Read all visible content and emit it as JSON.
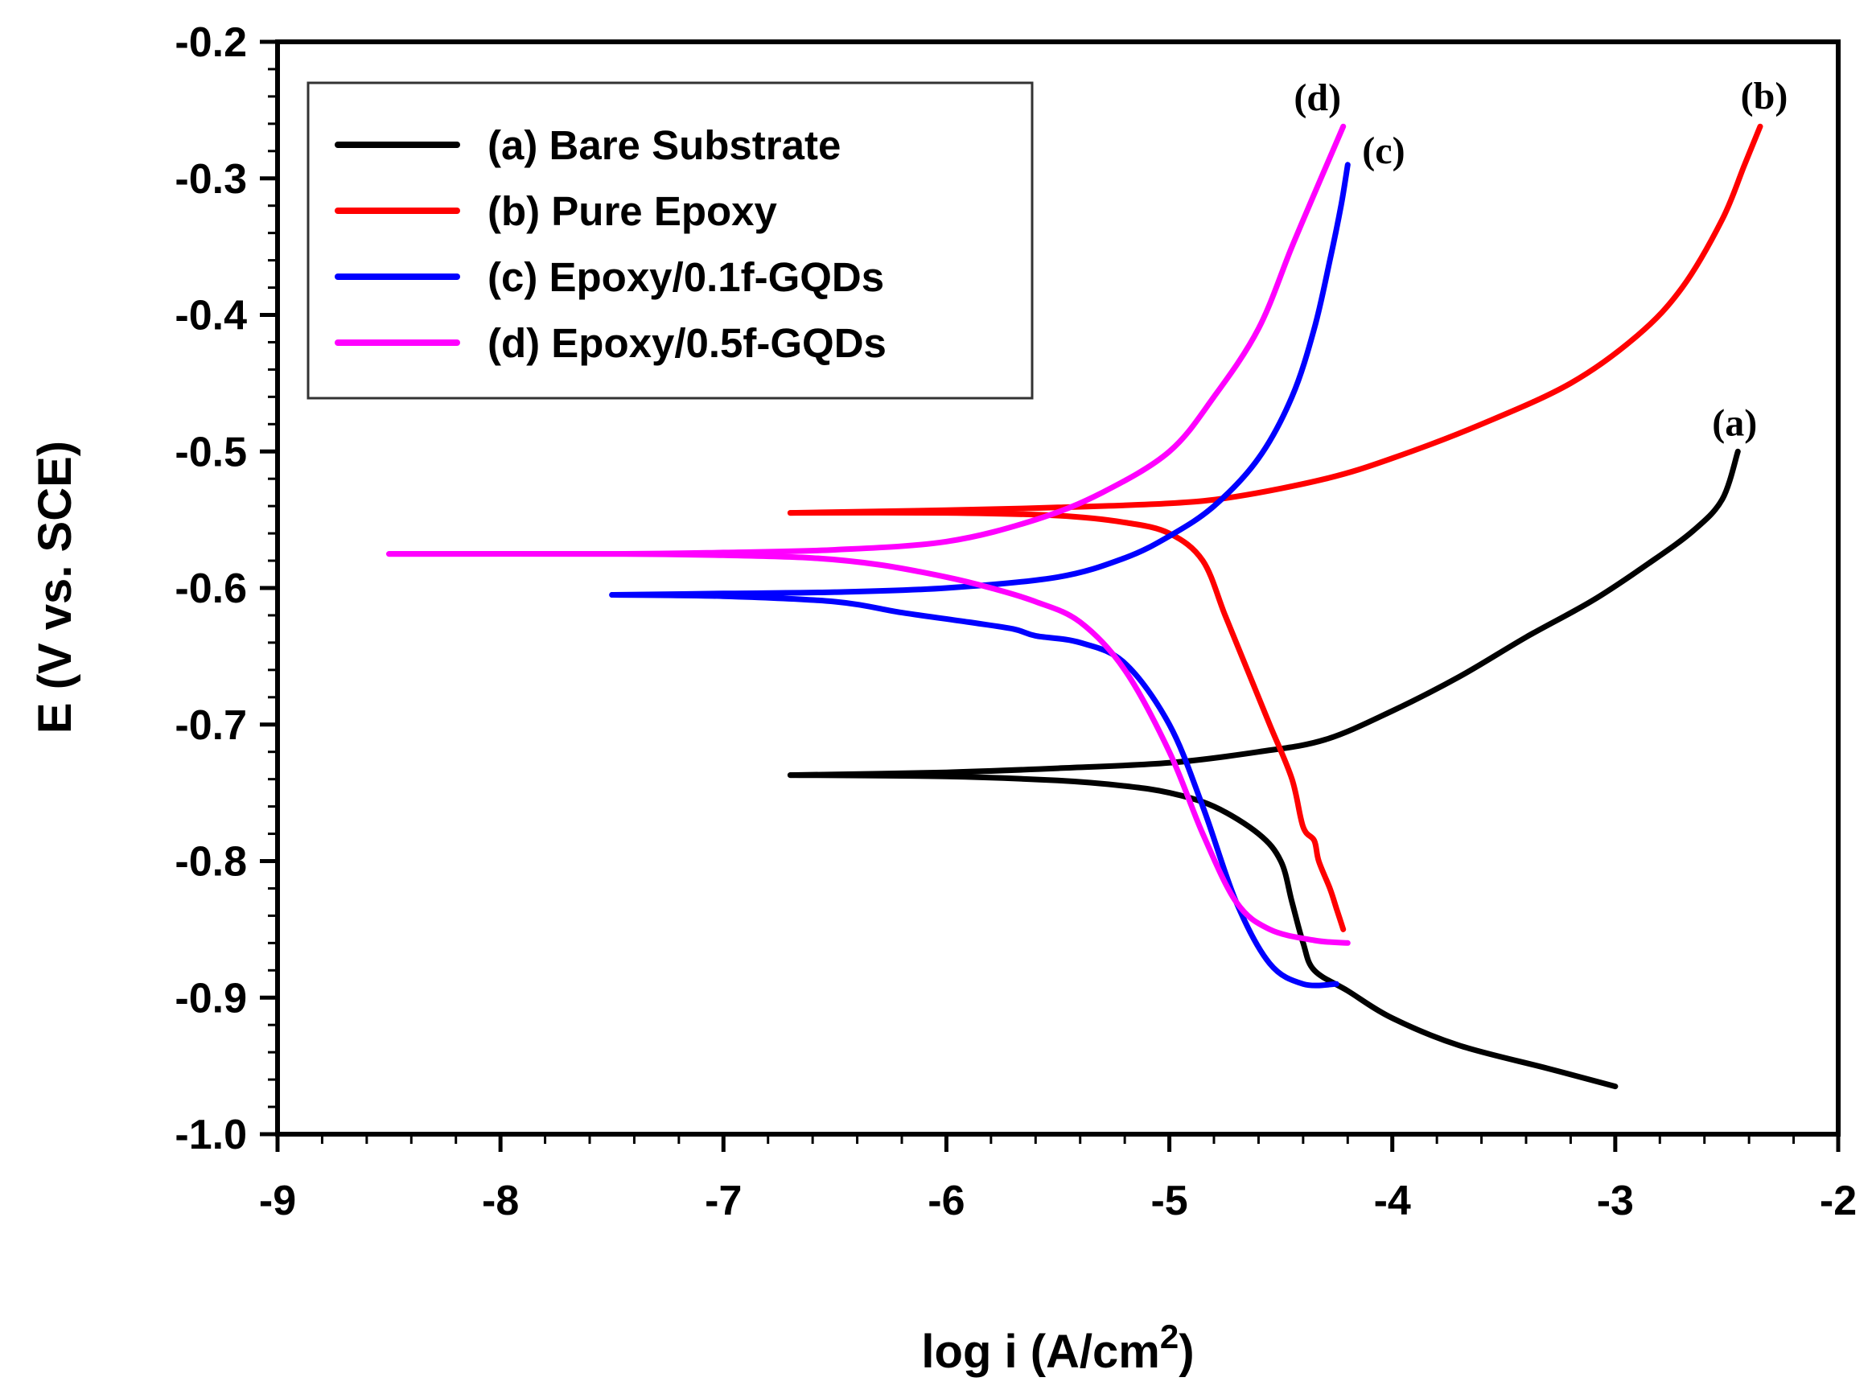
{
  "chart_data": {
    "type": "line",
    "title": "",
    "xlabel": "log i (A/cm",
    "xlabel_sup": "2",
    "xlabel_close": ")",
    "ylabel": "E (V vs. SCE)",
    "xlim": [
      -9,
      -2
    ],
    "ylim": [
      -1.0,
      -0.2
    ],
    "x_ticks": [
      -9,
      -8,
      -7,
      -6,
      -5,
      -4,
      -3,
      -2
    ],
    "x_tick_labels": [
      "-9",
      "-8",
      "-7",
      "-6",
      "-5",
      "-4",
      "-3",
      "-2"
    ],
    "y_ticks": [
      -0.2,
      -0.3,
      -0.4,
      -0.5,
      -0.6,
      -0.7,
      -0.8,
      -0.9,
      -1.0
    ],
    "y_tick_labels": [
      "-0.2",
      "-0.3",
      "-0.4",
      "-0.5",
      "-0.6",
      "-0.7",
      "-0.8",
      "-0.9",
      "-1.0"
    ],
    "grid": false,
    "legend_position": "top-left",
    "series": [
      {
        "name": "(a) Bare Substrate",
        "label": "(a)",
        "color": "#000000",
        "anodic": [
          [
            -6.7,
            -0.737
          ],
          [
            -6.0,
            -0.735
          ],
          [
            -5.5,
            -0.732
          ],
          [
            -5.0,
            -0.728
          ],
          [
            -4.6,
            -0.72
          ],
          [
            -4.3,
            -0.711
          ],
          [
            -4.0,
            -0.69
          ],
          [
            -3.7,
            -0.665
          ],
          [
            -3.4,
            -0.636
          ],
          [
            -3.1,
            -0.609
          ],
          [
            -2.85,
            -0.582
          ],
          [
            -2.65,
            -0.558
          ],
          [
            -2.52,
            -0.535
          ],
          [
            -2.45,
            -0.5
          ]
        ],
        "cathodic": [
          [
            -6.7,
            -0.737
          ],
          [
            -6.0,
            -0.738
          ],
          [
            -5.5,
            -0.741
          ],
          [
            -5.2,
            -0.745
          ],
          [
            -5.0,
            -0.75
          ],
          [
            -4.8,
            -0.76
          ],
          [
            -4.6,
            -0.78
          ],
          [
            -4.5,
            -0.8
          ],
          [
            -4.45,
            -0.83
          ],
          [
            -4.4,
            -0.86
          ],
          [
            -4.35,
            -0.88
          ],
          [
            -4.2,
            -0.895
          ],
          [
            -4.0,
            -0.915
          ],
          [
            -3.7,
            -0.935
          ],
          [
            -3.3,
            -0.952
          ],
          [
            -3.0,
            -0.965
          ]
        ]
      },
      {
        "name": "(b) Pure Epoxy",
        "label": "(b)",
        "color": "#ff0000",
        "anodic": [
          [
            -6.7,
            -0.545
          ],
          [
            -6.0,
            -0.543
          ],
          [
            -5.5,
            -0.541
          ],
          [
            -5.0,
            -0.538
          ],
          [
            -4.7,
            -0.533
          ],
          [
            -4.3,
            -0.52
          ],
          [
            -4.0,
            -0.505
          ],
          [
            -3.6,
            -0.48
          ],
          [
            -3.2,
            -0.45
          ],
          [
            -2.9,
            -0.415
          ],
          [
            -2.7,
            -0.38
          ],
          [
            -2.52,
            -0.33
          ],
          [
            -2.42,
            -0.29
          ],
          [
            -2.35,
            -0.262
          ]
        ],
        "cathodic": [
          [
            -6.7,
            -0.545
          ],
          [
            -6.0,
            -0.545
          ],
          [
            -5.5,
            -0.547
          ],
          [
            -5.2,
            -0.552
          ],
          [
            -5.0,
            -0.56
          ],
          [
            -4.85,
            -0.58
          ],
          [
            -4.75,
            -0.62
          ],
          [
            -4.65,
            -0.66
          ],
          [
            -4.55,
            -0.7
          ],
          [
            -4.45,
            -0.74
          ],
          [
            -4.4,
            -0.775
          ],
          [
            -4.35,
            -0.785
          ],
          [
            -4.33,
            -0.8
          ],
          [
            -4.28,
            -0.82
          ],
          [
            -4.25,
            -0.835
          ],
          [
            -4.22,
            -0.85
          ]
        ]
      },
      {
        "name": "(c) Epoxy/0.1f-GQDs",
        "label": "(c)",
        "color": "#0000ff",
        "anodic": [
          [
            -7.5,
            -0.605
          ],
          [
            -7.0,
            -0.604
          ],
          [
            -6.5,
            -0.603
          ],
          [
            -6.0,
            -0.6
          ],
          [
            -5.5,
            -0.592
          ],
          [
            -5.2,
            -0.578
          ],
          [
            -5.0,
            -0.562
          ],
          [
            -4.8,
            -0.54
          ],
          [
            -4.6,
            -0.505
          ],
          [
            -4.45,
            -0.46
          ],
          [
            -4.35,
            -0.41
          ],
          [
            -4.28,
            -0.36
          ],
          [
            -4.23,
            -0.32
          ],
          [
            -4.2,
            -0.29
          ]
        ],
        "cathodic": [
          [
            -7.5,
            -0.605
          ],
          [
            -7.0,
            -0.606
          ],
          [
            -6.5,
            -0.61
          ],
          [
            -6.2,
            -0.618
          ],
          [
            -5.9,
            -0.625
          ],
          [
            -5.7,
            -0.63
          ],
          [
            -5.6,
            -0.635
          ],
          [
            -5.4,
            -0.64
          ],
          [
            -5.2,
            -0.655
          ],
          [
            -5.0,
            -0.7
          ],
          [
            -4.85,
            -0.76
          ],
          [
            -4.7,
            -0.83
          ],
          [
            -4.55,
            -0.875
          ],
          [
            -4.4,
            -0.89
          ],
          [
            -4.25,
            -0.89
          ]
        ]
      },
      {
        "name": "(d) Epoxy/0.5f-GQDs",
        "label": "(d)",
        "color": "#ff00ff",
        "anodic": [
          [
            -8.5,
            -0.575
          ],
          [
            -7.5,
            -0.575
          ],
          [
            -7.0,
            -0.574
          ],
          [
            -6.5,
            -0.572
          ],
          [
            -6.0,
            -0.566
          ],
          [
            -5.6,
            -0.55
          ],
          [
            -5.3,
            -0.53
          ],
          [
            -5.0,
            -0.5
          ],
          [
            -4.8,
            -0.46
          ],
          [
            -4.6,
            -0.41
          ],
          [
            -4.45,
            -0.35
          ],
          [
            -4.32,
            -0.3
          ],
          [
            -4.22,
            -0.262
          ]
        ],
        "cathodic": [
          [
            -8.5,
            -0.575
          ],
          [
            -7.5,
            -0.575
          ],
          [
            -7.0,
            -0.576
          ],
          [
            -6.6,
            -0.578
          ],
          [
            -6.3,
            -0.583
          ],
          [
            -6.0,
            -0.592
          ],
          [
            -5.8,
            -0.6
          ],
          [
            -5.6,
            -0.61
          ],
          [
            -5.4,
            -0.625
          ],
          [
            -5.2,
            -0.66
          ],
          [
            -5.0,
            -0.72
          ],
          [
            -4.85,
            -0.78
          ],
          [
            -4.7,
            -0.83
          ],
          [
            -4.55,
            -0.85
          ],
          [
            -4.35,
            -0.858
          ],
          [
            -4.2,
            -0.86
          ]
        ]
      }
    ]
  }
}
